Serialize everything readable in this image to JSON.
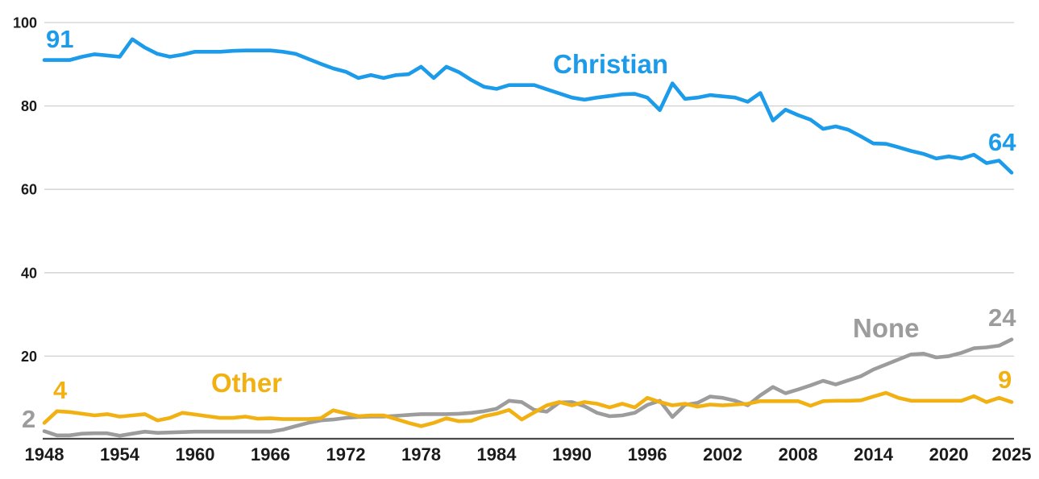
{
  "chart_data": {
    "type": "line",
    "x": [
      1948,
      1949,
      1950,
      1951,
      1952,
      1953,
      1954,
      1955,
      1956,
      1957,
      1958,
      1959,
      1960,
      1961,
      1962,
      1963,
      1964,
      1965,
      1966,
      1967,
      1968,
      1969,
      1970,
      1971,
      1972,
      1973,
      1974,
      1975,
      1976,
      1977,
      1978,
      1979,
      1980,
      1981,
      1982,
      1983,
      1984,
      1985,
      1986,
      1987,
      1988,
      1989,
      1990,
      1991,
      1992,
      1993,
      1994,
      1995,
      1996,
      1997,
      1998,
      1999,
      2000,
      2001,
      2002,
      2003,
      2004,
      2005,
      2006,
      2007,
      2008,
      2009,
      2010,
      2011,
      2012,
      2013,
      2014,
      2015,
      2016,
      2017,
      2018,
      2019,
      2020,
      2021,
      2022,
      2023,
      2024,
      2025
    ],
    "series": [
      {
        "name": "Christian",
        "color": "#1b9be9",
        "values": [
          91,
          91,
          91,
          91.8,
          92.4,
          92.1,
          91.8,
          96,
          94,
          92.5,
          91.8,
          92.3,
          93,
          93,
          93,
          93.2,
          93.3,
          93.3,
          93.3,
          93,
          92.5,
          91.3,
          90.1,
          89,
          88.2,
          86.7,
          87.4,
          86.7,
          87.4,
          87.6,
          89.4,
          86.7,
          89.4,
          88.1,
          86.2,
          84.6,
          84.1,
          85,
          85,
          85,
          84,
          83,
          82,
          81.5,
          82,
          82.4,
          82.8,
          82.9,
          82,
          79,
          85.4,
          81.7,
          82,
          82.6,
          82.3,
          82,
          81,
          83.1,
          76.5,
          79.1,
          77.8,
          76.7,
          74.5,
          75.1,
          74.3,
          72.7,
          71,
          70.9,
          70.1,
          69.2,
          68.5,
          67.4,
          67.9,
          67.4,
          68.3,
          66.3,
          66.9,
          64
        ]
      },
      {
        "name": "None",
        "color": "#9c9c9c",
        "values": [
          2,
          1,
          1,
          1.4,
          1.5,
          1.5,
          0.9,
          1.4,
          1.9,
          1.6,
          1.7,
          1.8,
          1.9,
          1.9,
          1.9,
          1.9,
          1.9,
          1.9,
          1.9,
          2.4,
          3.2,
          4,
          4.6,
          4.8,
          5.2,
          5.4,
          5.5,
          5.5,
          5.7,
          5.9,
          6.1,
          6.1,
          6.1,
          6.2,
          6.4,
          6.8,
          7.4,
          9.3,
          9,
          7.1,
          6.7,
          8.9,
          9,
          8,
          6.4,
          5.6,
          5.8,
          6.4,
          8.3,
          9.3,
          5.4,
          8.3,
          8.8,
          10.3,
          10,
          9.3,
          8.2,
          10.6,
          12.6,
          11.1,
          12,
          13,
          14.1,
          13.2,
          14.2,
          15.2,
          16.8,
          18,
          19.2,
          20.4,
          20.6,
          19.7,
          20,
          20.8,
          21.9,
          22.1,
          22.5,
          24
        ]
      },
      {
        "name": "Other",
        "color": "#f2b113",
        "values": [
          4,
          6.8,
          6.6,
          6.2,
          5.8,
          6.1,
          5.5,
          5.8,
          6.1,
          4.6,
          5.2,
          6.4,
          6,
          5.6,
          5.2,
          5.2,
          5.5,
          5,
          5.1,
          4.9,
          4.9,
          4.9,
          5.1,
          7,
          6.3,
          5.6,
          5.8,
          5.8,
          4.9,
          4,
          3.2,
          4,
          5.1,
          4.4,
          4.5,
          5.6,
          6.2,
          7.1,
          4.8,
          6.5,
          8.2,
          9,
          8.2,
          9,
          8.6,
          7.7,
          8.6,
          7.7,
          10,
          9,
          8.2,
          8.6,
          7.9,
          8.4,
          8.2,
          8.4,
          8.6,
          9.2,
          9.2,
          9.2,
          9.2,
          8.1,
          9.2,
          9.3,
          9.3,
          9.4,
          10.3,
          11.2,
          10,
          9.3,
          9.3,
          9.3,
          9.3,
          9.3,
          10.4,
          9,
          10,
          9
        ]
      }
    ],
    "ylim": [
      0,
      100
    ],
    "yticks": [
      20,
      40,
      60,
      80,
      100
    ],
    "xticks": [
      1948,
      1954,
      1960,
      1966,
      1972,
      1978,
      1984,
      1990,
      1996,
      2002,
      2008,
      2014,
      2020,
      2025
    ],
    "grid": "horizontal",
    "legend_position": "inline-labels",
    "annotations": {
      "christian_start": {
        "text": "91",
        "series": "Christian"
      },
      "christian_name": {
        "text": "Christian",
        "series": "Christian"
      },
      "christian_end": {
        "text": "64",
        "series": "Christian"
      },
      "none_start": {
        "text": "2",
        "series": "None"
      },
      "none_name": {
        "text": "None",
        "series": "None"
      },
      "none_end": {
        "text": "24",
        "series": "None"
      },
      "other_start": {
        "text": "4",
        "series": "Other"
      },
      "other_name": {
        "text": "Other",
        "series": "Other"
      },
      "other_end": {
        "text": "9",
        "series": "Other"
      }
    },
    "colors": {
      "grid": "#d0d0d0",
      "axis": "#4a4a4a",
      "tick_text": "#1b1b1b"
    }
  }
}
